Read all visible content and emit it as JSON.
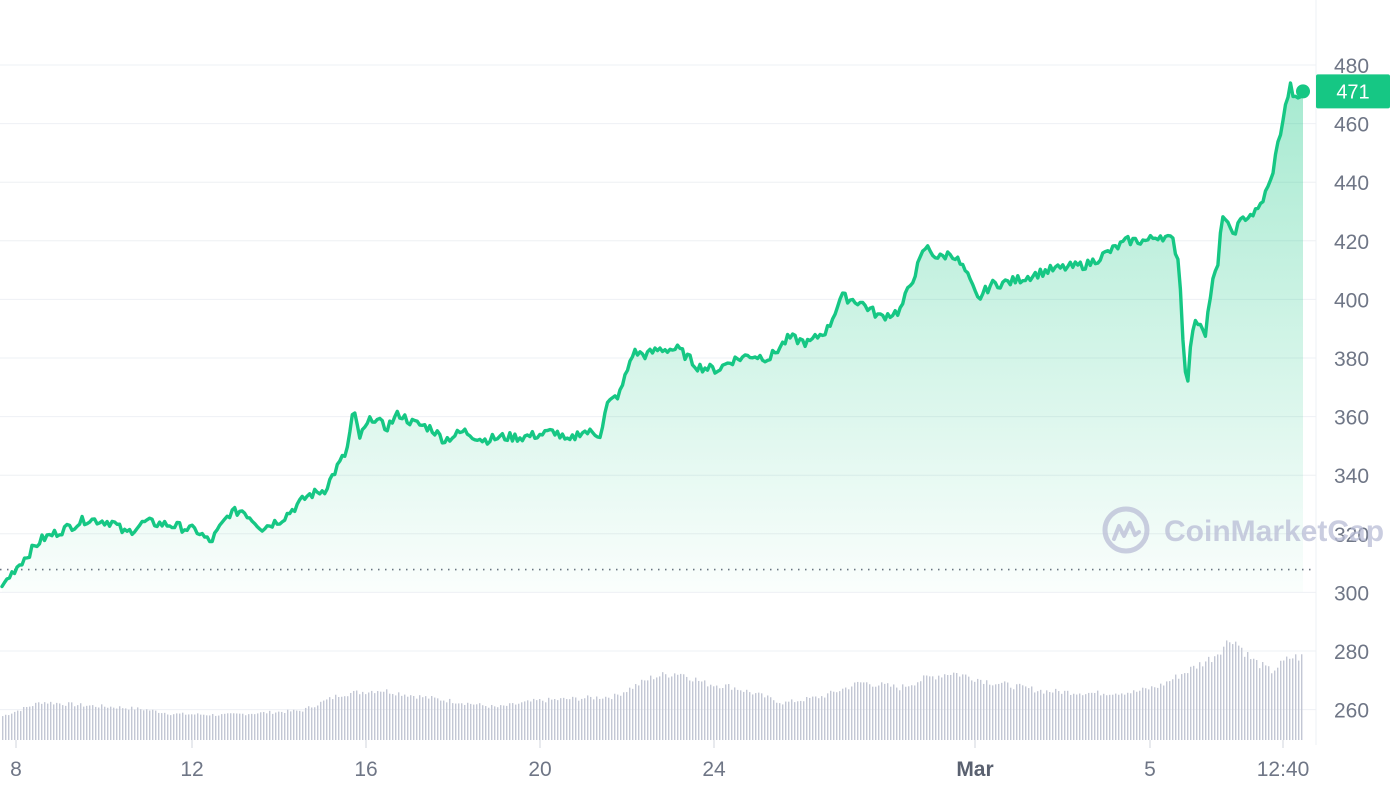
{
  "chart_data": {
    "type": "area",
    "y_axis": {
      "min": 250,
      "max": 480,
      "ticks": [
        "480",
        "460",
        "440",
        "420",
        "400",
        "380",
        "360",
        "340",
        "320",
        "300",
        "280",
        "260"
      ],
      "tick_values": [
        480,
        460,
        440,
        420,
        400,
        380,
        360,
        340,
        320,
        300,
        280,
        260
      ]
    },
    "x_axis": {
      "ticks": [
        {
          "label": "8",
          "bold": false
        },
        {
          "label": "12",
          "bold": false
        },
        {
          "label": "16",
          "bold": false
        },
        {
          "label": "20",
          "bold": false
        },
        {
          "label": "24",
          "bold": false
        },
        {
          "label": "Mar",
          "bold": true
        },
        {
          "label": "5",
          "bold": false
        },
        {
          "label": "12:40",
          "bold": false
        }
      ]
    },
    "baseline": 302,
    "current_price": "471",
    "line_color": "#16c784",
    "volume_color": "#c3c7d4",
    "grid": true,
    "watermark": "CoinMarketCap",
    "price_anchors": [
      [
        0.0,
        302
      ],
      [
        0.01,
        308
      ],
      [
        0.03,
        318
      ],
      [
        0.05,
        322
      ],
      [
        0.065,
        325
      ],
      [
        0.085,
        324
      ],
      [
        0.095,
        320
      ],
      [
        0.11,
        324
      ],
      [
        0.13,
        323
      ],
      [
        0.15,
        321
      ],
      [
        0.16,
        317
      ],
      [
        0.175,
        327
      ],
      [
        0.185,
        328
      ],
      [
        0.2,
        322
      ],
      [
        0.215,
        325
      ],
      [
        0.235,
        333
      ],
      [
        0.248,
        335
      ],
      [
        0.258,
        343
      ],
      [
        0.265,
        348
      ],
      [
        0.27,
        362
      ],
      [
        0.275,
        353
      ],
      [
        0.285,
        360
      ],
      [
        0.295,
        356
      ],
      [
        0.305,
        361
      ],
      [
        0.315,
        358
      ],
      [
        0.33,
        356
      ],
      [
        0.34,
        352
      ],
      [
        0.355,
        355
      ],
      [
        0.37,
        352
      ],
      [
        0.385,
        353
      ],
      [
        0.4,
        353
      ],
      [
        0.415,
        354
      ],
      [
        0.425,
        355
      ],
      [
        0.435,
        351
      ],
      [
        0.445,
        355
      ],
      [
        0.46,
        354
      ],
      [
        0.465,
        364
      ],
      [
        0.475,
        368
      ],
      [
        0.485,
        382
      ],
      [
        0.495,
        381
      ],
      [
        0.505,
        383
      ],
      [
        0.52,
        383
      ],
      [
        0.535,
        377
      ],
      [
        0.55,
        376
      ],
      [
        0.56,
        379
      ],
      [
        0.575,
        381
      ],
      [
        0.59,
        380
      ],
      [
        0.605,
        387
      ],
      [
        0.62,
        385
      ],
      [
        0.635,
        390
      ],
      [
        0.645,
        401
      ],
      [
        0.66,
        399
      ],
      [
        0.675,
        394
      ],
      [
        0.69,
        396
      ],
      [
        0.7,
        407
      ],
      [
        0.71,
        418
      ],
      [
        0.72,
        414
      ],
      [
        0.73,
        416
      ],
      [
        0.74,
        410
      ],
      [
        0.75,
        400
      ],
      [
        0.76,
        405
      ],
      [
        0.775,
        406
      ],
      [
        0.79,
        408
      ],
      [
        0.805,
        410
      ],
      [
        0.82,
        411
      ],
      [
        0.835,
        412
      ],
      [
        0.85,
        416
      ],
      [
        0.865,
        420
      ],
      [
        0.88,
        420
      ],
      [
        0.89,
        422
      ],
      [
        0.9,
        420
      ],
      [
        0.905,
        412
      ],
      [
        0.908,
        383
      ],
      [
        0.911,
        371
      ],
      [
        0.915,
        390
      ],
      [
        0.92,
        393
      ],
      [
        0.925,
        389
      ],
      [
        0.93,
        405
      ],
      [
        0.935,
        412
      ],
      [
        0.938,
        430
      ],
      [
        0.945,
        422
      ],
      [
        0.955,
        428
      ],
      [
        0.965,
        430
      ],
      [
        0.975,
        440
      ],
      [
        0.983,
        458
      ],
      [
        0.99,
        473
      ],
      [
        0.995,
        467
      ],
      [
        1.0,
        471
      ]
    ],
    "volume_anchors": [
      [
        0.0,
        0.22
      ],
      [
        0.03,
        0.35
      ],
      [
        0.06,
        0.32
      ],
      [
        0.09,
        0.3
      ],
      [
        0.11,
        0.28
      ],
      [
        0.13,
        0.24
      ],
      [
        0.17,
        0.23
      ],
      [
        0.2,
        0.25
      ],
      [
        0.23,
        0.27
      ],
      [
        0.26,
        0.42
      ],
      [
        0.29,
        0.46
      ],
      [
        0.32,
        0.4
      ],
      [
        0.35,
        0.35
      ],
      [
        0.38,
        0.3
      ],
      [
        0.41,
        0.36
      ],
      [
        0.44,
        0.38
      ],
      [
        0.47,
        0.4
      ],
      [
        0.5,
        0.58
      ],
      [
        0.52,
        0.62
      ],
      [
        0.54,
        0.52
      ],
      [
        0.56,
        0.49
      ],
      [
        0.58,
        0.42
      ],
      [
        0.6,
        0.34
      ],
      [
        0.63,
        0.4
      ],
      [
        0.66,
        0.53
      ],
      [
        0.69,
        0.48
      ],
      [
        0.71,
        0.57
      ],
      [
        0.73,
        0.62
      ],
      [
        0.76,
        0.53
      ],
      [
        0.8,
        0.45
      ],
      [
        0.84,
        0.43
      ],
      [
        0.87,
        0.44
      ],
      [
        0.89,
        0.5
      ],
      [
        0.91,
        0.63
      ],
      [
        0.93,
        0.76
      ],
      [
        0.945,
        0.94
      ],
      [
        0.96,
        0.74
      ],
      [
        0.975,
        0.63
      ],
      [
        0.99,
        0.76
      ],
      [
        1.0,
        0.76
      ]
    ]
  }
}
